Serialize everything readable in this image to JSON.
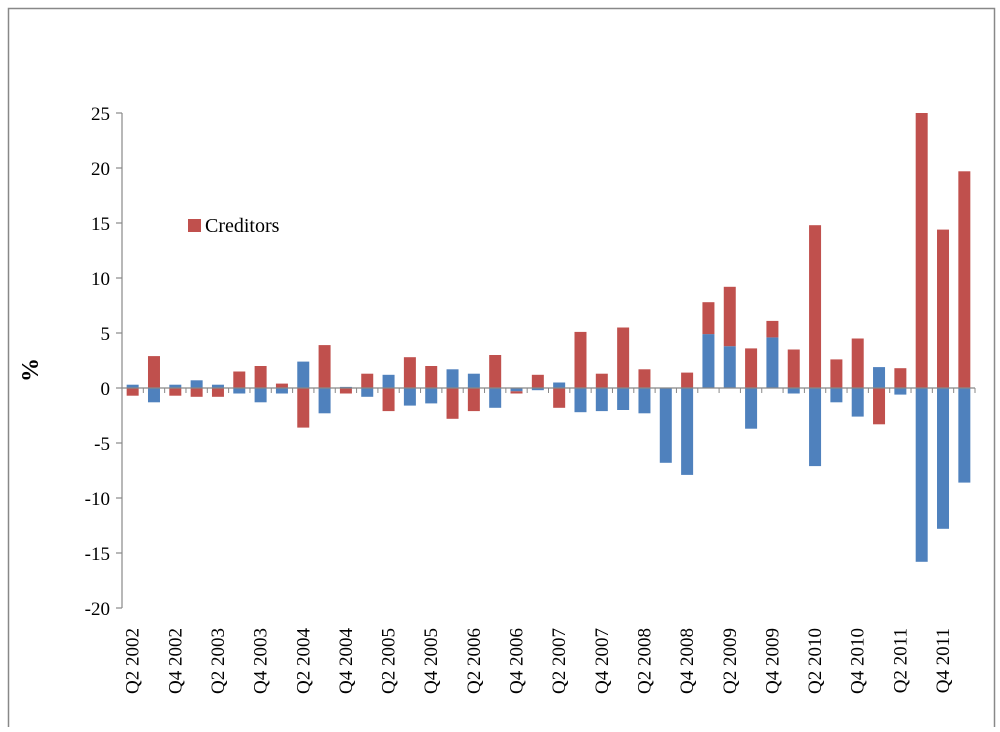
{
  "chart_data": {
    "type": "bar",
    "stacked": true,
    "y_label": "%",
    "categories": [
      "Q2 2002",
      null,
      "Q4 2002",
      null,
      "Q2 2003",
      null,
      "Q4 2003",
      null,
      "Q2 2004",
      null,
      "Q4 2004",
      null,
      "Q2 2005",
      null,
      "Q4 2005",
      null,
      "Q2 2006",
      null,
      "Q4 2006",
      null,
      "Q2 2007",
      null,
      "Q4 2007",
      null,
      "Q2 2008",
      null,
      "Q4 2008",
      null,
      "Q2 2009",
      null,
      "Q4 2009",
      null,
      "Q2 2010",
      null,
      "Q4 2010",
      null,
      "Q2 2011",
      null,
      "Q4 2011",
      null
    ],
    "series": [
      {
        "color": "#4f81bd",
        "values": [
          0.3,
          -1.3,
          0.3,
          0.7,
          0.3,
          -0.5,
          -1.3,
          -0.5,
          2.4,
          -2.3,
          0.1,
          -0.8,
          1.2,
          -1.6,
          -1.4,
          1.7,
          1.3,
          -1.8,
          -0.3,
          -0.2,
          0.5,
          -2.2,
          -2.1,
          -2.0,
          -2.3,
          -6.8,
          -7.9,
          4.9,
          3.8,
          -3.7,
          4.6,
          -0.5,
          -7.1,
          -1.3,
          -2.6,
          1.9,
          -0.6,
          -15.8,
          -12.8,
          -8.6
        ]
      },
      {
        "name": "Creditors",
        "color": "#c0504d",
        "values": [
          -0.7,
          2.9,
          -0.7,
          -0.8,
          -0.8,
          1.5,
          2.0,
          0.4,
          -3.6,
          3.9,
          -0.5,
          1.3,
          -2.1,
          2.8,
          2.0,
          -2.8,
          -2.1,
          3.0,
          -0.2,
          1.2,
          -1.8,
          5.1,
          1.3,
          5.5,
          1.7,
          0,
          1.4,
          2.9,
          5.4,
          3.6,
          1.5,
          3.5,
          14.8,
          2.6,
          4.5,
          -3.3,
          1.8,
          25,
          14.4,
          19.7
        ]
      }
    ],
    "ylim": [
      -20,
      25
    ],
    "yticks": [
      -20,
      -15,
      -10,
      -5,
      0,
      5,
      10,
      15,
      20,
      25
    ]
  }
}
